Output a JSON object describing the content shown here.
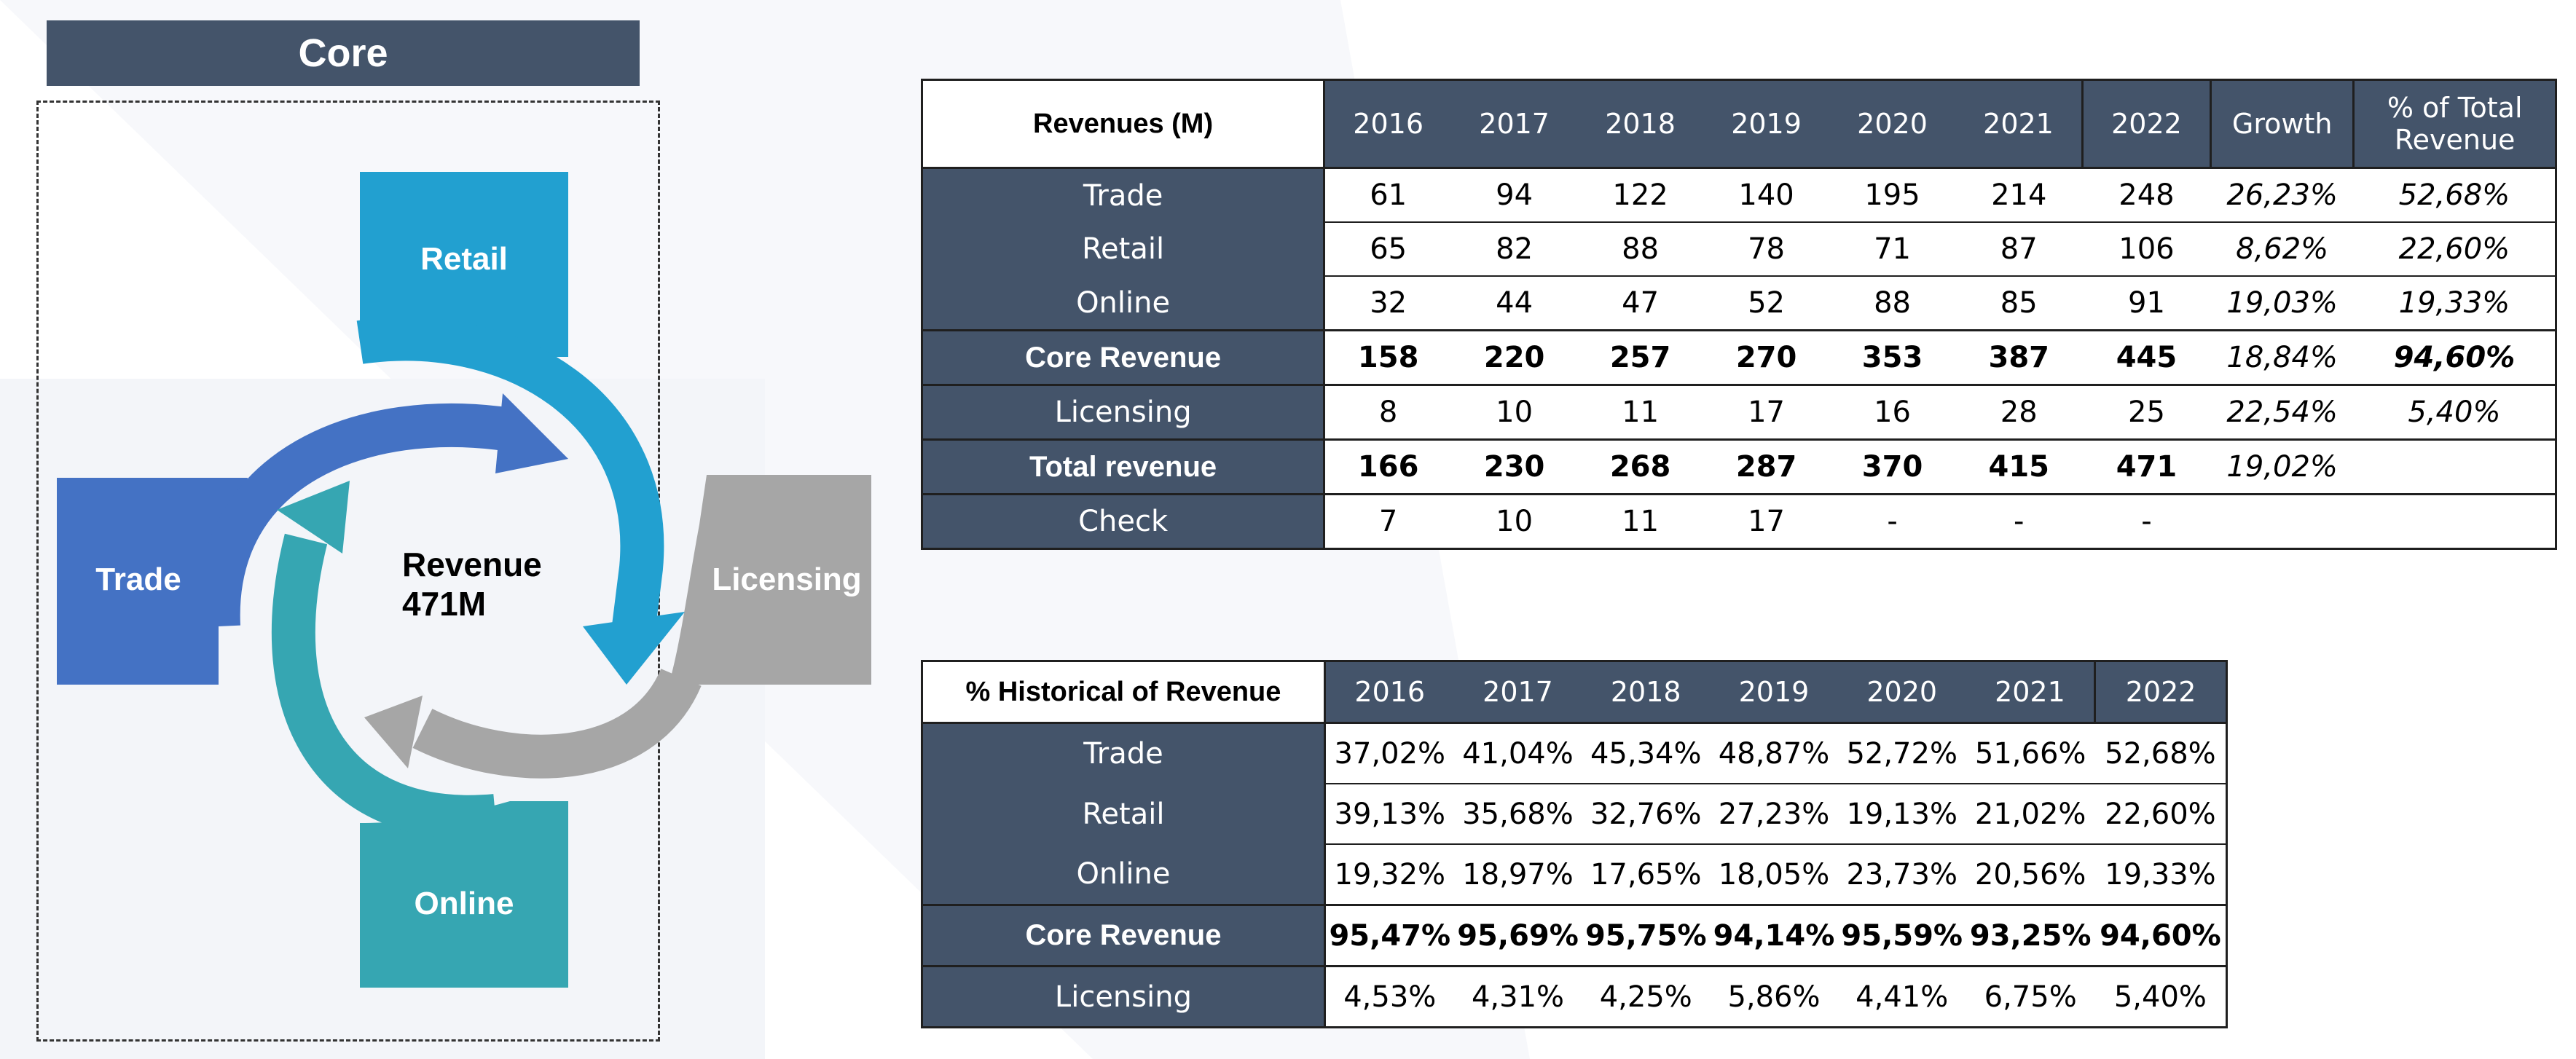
{
  "core_title": "Core",
  "diagram": {
    "segments": [
      {
        "name": "Trade",
        "color": "#4472c4"
      },
      {
        "name": "Retail",
        "color": "#22a0d0"
      },
      {
        "name": "Licensing",
        "color": "#a6a6a6"
      },
      {
        "name": "Online",
        "color": "#36a6b2"
      }
    ],
    "center_line1": "Revenue",
    "center_line2": "471M"
  },
  "revenues_table": {
    "header_label": "Revenues (M)",
    "columns": [
      "2016",
      "2017",
      "2018",
      "2019",
      "2020",
      "2021",
      "2022",
      "Growth",
      "% of Total Revenue"
    ],
    "rows": [
      {
        "label": "Trade",
        "values": [
          "61",
          "94",
          "122",
          "140",
          "195",
          "214",
          "248",
          "26,23%",
          "52,68%"
        ],
        "bold": false
      },
      {
        "label": "Retail",
        "values": [
          "65",
          "82",
          "88",
          "78",
          "71",
          "87",
          "106",
          "8,62%",
          "22,60%"
        ],
        "bold": false
      },
      {
        "label": "Online",
        "values": [
          "32",
          "44",
          "47",
          "52",
          "88",
          "85",
          "91",
          "19,03%",
          "19,33%"
        ],
        "bold": false
      },
      {
        "label": "Core Revenue",
        "values": [
          "158",
          "220",
          "257",
          "270",
          "353",
          "387",
          "445",
          "18,84%",
          "94,60%"
        ],
        "bold": true
      },
      {
        "label": "Licensing",
        "values": [
          "8",
          "10",
          "11",
          "17",
          "16",
          "28",
          "25",
          "22,54%",
          "5,40%"
        ],
        "bold": false
      },
      {
        "label": "Total revenue",
        "values": [
          "166",
          "230",
          "268",
          "287",
          "370",
          "415",
          "471",
          "19,02%",
          ""
        ],
        "bold": true
      },
      {
        "label": "Check",
        "values": [
          "7",
          "10",
          "11",
          "17",
          "-",
          "-",
          "-",
          "",
          ""
        ],
        "bold": false
      }
    ]
  },
  "historical_table": {
    "header_label": "% Historical of Revenue",
    "columns": [
      "2016",
      "2017",
      "2018",
      "2019",
      "2020",
      "2021",
      "2022"
    ],
    "rows": [
      {
        "label": "Trade",
        "values": [
          "37,02%",
          "41,04%",
          "45,34%",
          "48,87%",
          "52,72%",
          "51,66%",
          "52,68%"
        ],
        "bold": false
      },
      {
        "label": "Retail",
        "values": [
          "39,13%",
          "35,68%",
          "32,76%",
          "27,23%",
          "19,13%",
          "21,02%",
          "22,60%"
        ],
        "bold": false
      },
      {
        "label": "Online",
        "values": [
          "19,32%",
          "18,97%",
          "17,65%",
          "18,05%",
          "23,73%",
          "20,56%",
          "19,33%"
        ],
        "bold": false
      },
      {
        "label": "Core Revenue",
        "values": [
          "95,47%",
          "95,69%",
          "95,75%",
          "94,14%",
          "95,59%",
          "93,25%",
          "94,60%"
        ],
        "bold": true
      },
      {
        "label": "Licensing",
        "values": [
          "4,53%",
          "4,31%",
          "4,25%",
          "5,86%",
          "4,41%",
          "6,75%",
          "5,40%"
        ],
        "bold": false
      }
    ]
  }
}
